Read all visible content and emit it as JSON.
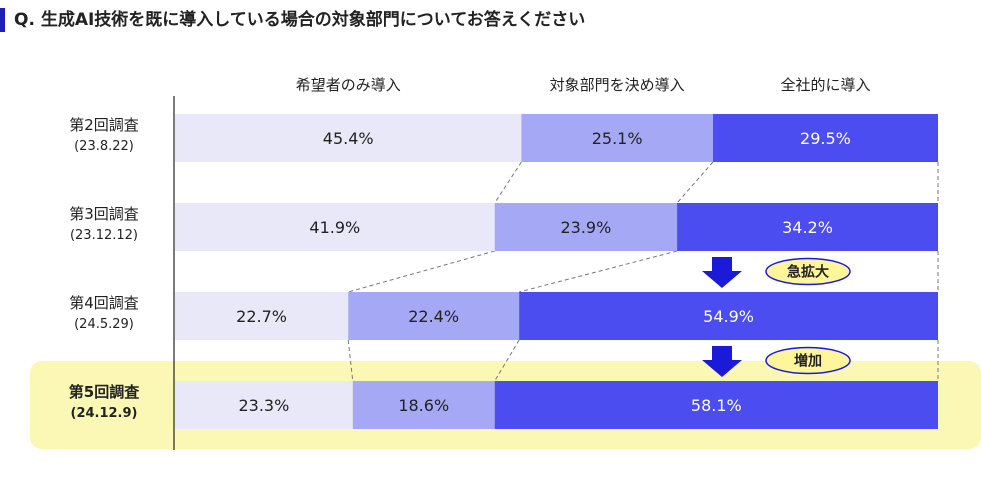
{
  "question": "Q. 生成AI技術を既に導入している場合の対象部門についてお答えください",
  "colors": {
    "segment_1": "#e8e8f8",
    "segment_2": "#a5a8f4",
    "segment_3": "#4c4df0",
    "arrow": "#1a1ad8",
    "highlight_band": "#fbf7b4",
    "badge_fill": "#fff59a",
    "badge_border": "#1a1ad8",
    "title_accent": "#1e1fb5"
  },
  "annotations": [
    {
      "text": "急拡大",
      "between": [
        "第3回調査",
        "第4回調査"
      ]
    },
    {
      "text": "増加",
      "between": [
        "第4回調査",
        "第5回調査"
      ]
    }
  ],
  "chart_data": {
    "type": "bar",
    "orientation": "horizontal",
    "stacked": "100%",
    "categories": [
      {
        "name": "第2回調査",
        "date": "(23.8.22)"
      },
      {
        "name": "第3回調査",
        "date": "(23.12.12)"
      },
      {
        "name": "第4回調査",
        "date": "(24.5.29)"
      },
      {
        "name": "第5回調査",
        "date": "(24.12.9)"
      }
    ],
    "series": [
      {
        "name": "希望者のみ導入",
        "values": [
          45.4,
          41.9,
          22.7,
          23.3
        ]
      },
      {
        "name": "対象部門を決め導入",
        "values": [
          25.1,
          23.9,
          22.4,
          18.6
        ]
      },
      {
        "name": "全社的に導入",
        "values": [
          29.5,
          34.2,
          54.9,
          58.1
        ]
      }
    ],
    "value_suffix": "%",
    "highlighted_category": "第5回調査",
    "legend_position": "top",
    "grid": false,
    "xlim": [
      0,
      100
    ]
  }
}
